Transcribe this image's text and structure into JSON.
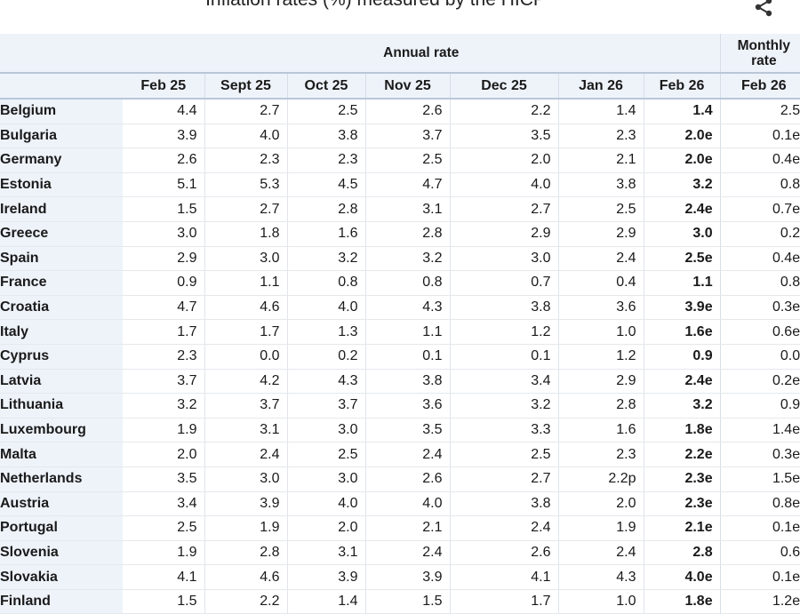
{
  "title": "Inflation rates (%) measured by the HICP",
  "share_icon": "share-icon",
  "header": {
    "annual_label": "Annual rate",
    "monthly_label_line1": "Monthly",
    "monthly_label_line2": "rate",
    "columns": [
      "Feb 25",
      "Sept 25",
      "Oct 25",
      "Nov 25",
      "Dec 25",
      "Jan 26",
      "Feb 26",
      "Feb 26"
    ]
  },
  "rows": [
    {
      "country": "Belgium",
      "values": [
        "4.4",
        "2.7",
        "2.5",
        "2.6",
        "2.2",
        "1.4",
        "1.4",
        "2.5"
      ]
    },
    {
      "country": "Bulgaria",
      "values": [
        "3.9",
        "4.0",
        "3.8",
        "3.7",
        "3.5",
        "2.3",
        "2.0e",
        "0.1e"
      ]
    },
    {
      "country": "Germany",
      "values": [
        "2.6",
        "2.3",
        "2.3",
        "2.5",
        "2.0",
        "2.1",
        "2.0e",
        "0.4e"
      ]
    },
    {
      "country": "Estonia",
      "values": [
        "5.1",
        "5.3",
        "4.5",
        "4.7",
        "4.0",
        "3.8",
        "3.2",
        "0.8"
      ]
    },
    {
      "country": "Ireland",
      "values": [
        "1.5",
        "2.7",
        "2.8",
        "3.1",
        "2.7",
        "2.5",
        "2.4e",
        "0.7e"
      ]
    },
    {
      "country": "Greece",
      "values": [
        "3.0",
        "1.8",
        "1.6",
        "2.8",
        "2.9",
        "2.9",
        "3.0",
        "0.2"
      ]
    },
    {
      "country": "Spain",
      "values": [
        "2.9",
        "3.0",
        "3.2",
        "3.2",
        "3.0",
        "2.4",
        "2.5e",
        "0.4e"
      ]
    },
    {
      "country": "France",
      "values": [
        "0.9",
        "1.1",
        "0.8",
        "0.8",
        "0.7",
        "0.4",
        "1.1",
        "0.8"
      ]
    },
    {
      "country": "Croatia",
      "values": [
        "4.7",
        "4.6",
        "4.0",
        "4.3",
        "3.8",
        "3.6",
        "3.9e",
        "0.3e"
      ]
    },
    {
      "country": "Italy",
      "values": [
        "1.7",
        "1.7",
        "1.3",
        "1.1",
        "1.2",
        "1.0",
        "1.6e",
        "0.6e"
      ]
    },
    {
      "country": "Cyprus",
      "values": [
        "2.3",
        "0.0",
        "0.2",
        "0.1",
        "0.1",
        "1.2",
        "0.9",
        "0.0"
      ]
    },
    {
      "country": "Latvia",
      "values": [
        "3.7",
        "4.2",
        "4.3",
        "3.8",
        "3.4",
        "2.9",
        "2.4e",
        "0.2e"
      ]
    },
    {
      "country": "Lithuania",
      "values": [
        "3.2",
        "3.7",
        "3.7",
        "3.6",
        "3.2",
        "2.8",
        "3.2",
        "0.9"
      ]
    },
    {
      "country": "Luxembourg",
      "values": [
        "1.9",
        "3.1",
        "3.0",
        "3.5",
        "3.3",
        "1.6",
        "1.8e",
        "1.4e"
      ]
    },
    {
      "country": "Malta",
      "values": [
        "2.0",
        "2.4",
        "2.5",
        "2.4",
        "2.5",
        "2.3",
        "2.2e",
        "0.3e"
      ]
    },
    {
      "country": "Netherlands",
      "values": [
        "3.5",
        "3.0",
        "3.0",
        "2.6",
        "2.7",
        "2.2p",
        "2.3e",
        "1.5e"
      ]
    },
    {
      "country": "Austria",
      "values": [
        "3.4",
        "3.9",
        "4.0",
        "4.0",
        "3.8",
        "2.0",
        "2.3e",
        "0.8e"
      ]
    },
    {
      "country": "Portugal",
      "values": [
        "2.5",
        "1.9",
        "2.0",
        "2.1",
        "2.4",
        "1.9",
        "2.1e",
        "0.1e"
      ]
    },
    {
      "country": "Slovenia",
      "values": [
        "1.9",
        "2.8",
        "3.1",
        "2.4",
        "2.6",
        "2.4",
        "2.8",
        "0.6"
      ]
    },
    {
      "country": "Slovakia",
      "values": [
        "4.1",
        "4.6",
        "3.9",
        "3.9",
        "4.1",
        "4.3",
        "4.0e",
        "0.1e"
      ]
    },
    {
      "country": "Finland",
      "values": [
        "1.5",
        "2.2",
        "1.4",
        "1.5",
        "1.7",
        "1.0",
        "1.8e",
        "1.2e"
      ]
    }
  ]
}
